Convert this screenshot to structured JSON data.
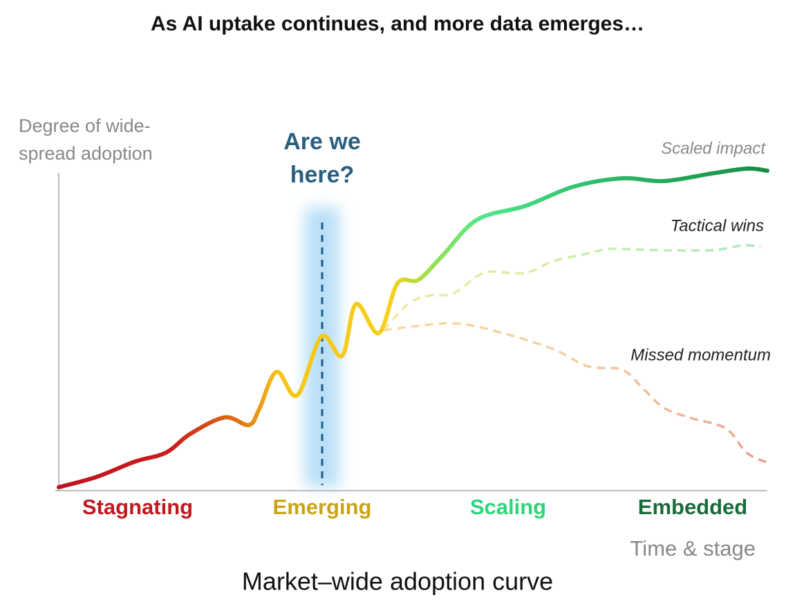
{
  "title": "As AI uptake continues, and more data emerges…",
  "y_axis_label": [
    "Degree of wide-",
    "spread adoption"
  ],
  "marker": [
    "Are we",
    "here?"
  ],
  "scenarios": [
    "Scaled impact",
    "Tactical wins",
    "Missed momentum"
  ],
  "stages": [
    "Stagnating",
    "Emerging",
    "Scaling",
    "Embedded"
  ],
  "x_axis_label": "Time & stage",
  "caption": "Market–wide adoption curve"
}
